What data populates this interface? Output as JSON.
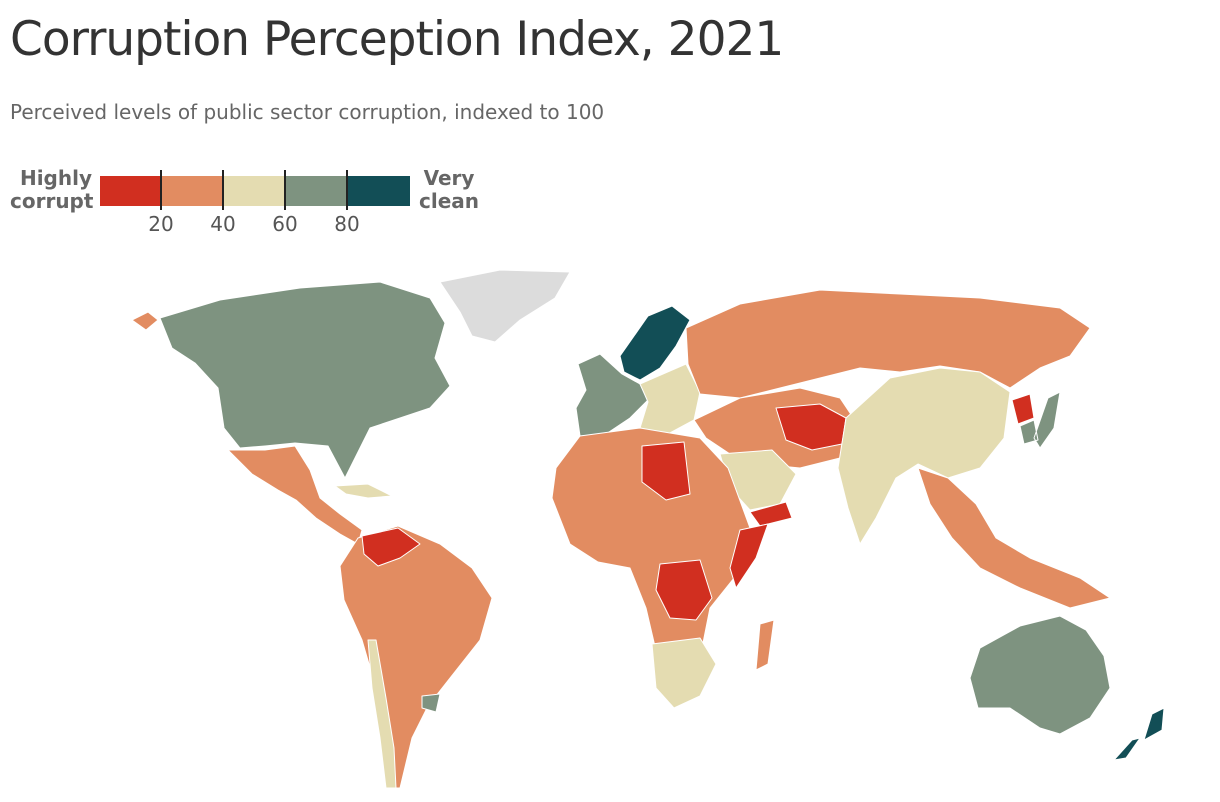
{
  "title": "Corruption Perception Index, 2021",
  "subtitle": "Perceived levels of public sector corruption, indexed to 100",
  "legend": {
    "low_label_1": "Highly",
    "low_label_2": "corrupt",
    "high_label_1": "Very",
    "high_label_2": "clean",
    "bins": [
      {
        "from": 0,
        "to": 20,
        "color": "#d12f20"
      },
      {
        "from": 20,
        "to": 40,
        "color": "#e28c61"
      },
      {
        "from": 40,
        "to": 60,
        "color": "#e4dcb1"
      },
      {
        "from": 60,
        "to": 80,
        "color": "#7e9380"
      },
      {
        "from": 80,
        "to": 100,
        "color": "#124e56"
      }
    ],
    "ticks": [
      "20",
      "40",
      "60",
      "80"
    ],
    "no_data_color": "#dcdcdc"
  },
  "map_data": {
    "type": "choropleth",
    "value_scale": [
      0,
      100
    ],
    "regions": [
      {
        "region": "North America",
        "bin": 3
      },
      {
        "region": "Greenland",
        "bin": "no-data"
      },
      {
        "region": "Mexico & Central America",
        "bin": 1
      },
      {
        "region": "South America",
        "bin": 1
      },
      {
        "region": "Venezuela",
        "bin": 0
      },
      {
        "region": "Uruguay",
        "bin": 3
      },
      {
        "region": "Chile",
        "bin": 2
      },
      {
        "region": "Nordic countries",
        "bin": 4
      },
      {
        "region": "Western Europe",
        "bin": 3
      },
      {
        "region": "Eastern Europe",
        "bin": 2
      },
      {
        "region": "Russia",
        "bin": 1
      },
      {
        "region": "North & West Africa",
        "bin": 1
      },
      {
        "region": "Libya",
        "bin": 0
      },
      {
        "region": "DR Congo",
        "bin": 0
      },
      {
        "region": "Somalia",
        "bin": 0
      },
      {
        "region": "Southern Africa",
        "bin": 2
      },
      {
        "region": "Madagascar",
        "bin": 1
      },
      {
        "region": "Middle East",
        "bin": 1
      },
      {
        "region": "Saudi Arabia",
        "bin": 2
      },
      {
        "region": "Yemen",
        "bin": 0
      },
      {
        "region": "Iran & Afghanistan",
        "bin": 0
      },
      {
        "region": "China & India",
        "bin": 2
      },
      {
        "region": "Southeast Asia",
        "bin": 1
      },
      {
        "region": "Japan & South Korea",
        "bin": 3
      },
      {
        "region": "North Korea",
        "bin": 0
      },
      {
        "region": "Australia",
        "bin": 3
      },
      {
        "region": "New Zealand",
        "bin": 4
      }
    ]
  }
}
